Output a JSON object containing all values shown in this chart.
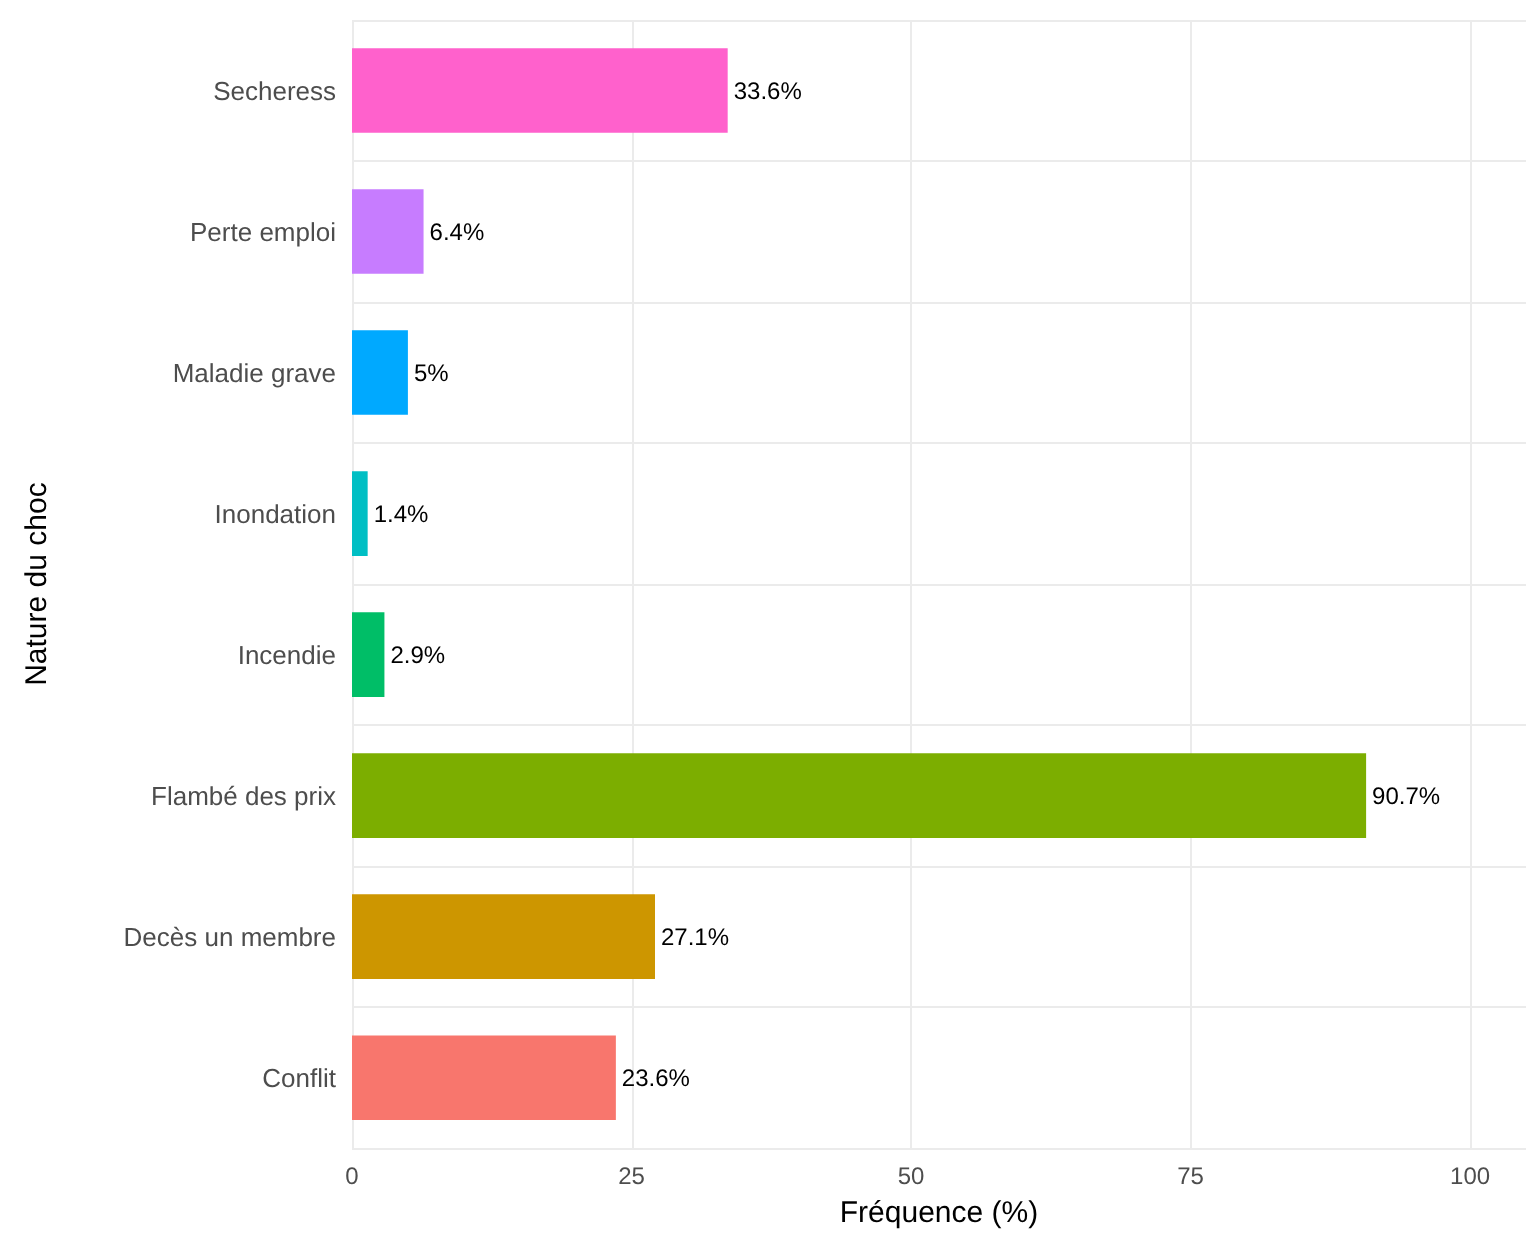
{
  "chart_data": {
    "type": "bar",
    "orientation": "horizontal",
    "xlabel": "Fréquence (%)",
    "ylabel": "Nature du choc",
    "categories": [
      "Secheress",
      "Perte emploi",
      "Maladie grave",
      "Inondation",
      "Incendie",
      "Flambé des prix",
      "Decès un membre",
      "Conflit"
    ],
    "values": [
      33.6,
      6.4,
      5,
      1.4,
      2.9,
      90.7,
      27.1,
      23.6
    ],
    "colors": [
      "#ff61cc",
      "#c77cff",
      "#00a9ff",
      "#00bfc4",
      "#00be67",
      "#7cae00",
      "#cd9600",
      "#f8766d"
    ],
    "value_labels": [
      "33.6%",
      "6.4%",
      "5%",
      "1.4%",
      "2.9%",
      "90.7%",
      "27.1%",
      "23.6%"
    ],
    "xlim": [
      0,
      105
    ],
    "xticks": [
      0,
      25,
      50,
      75,
      100
    ],
    "grid": true
  }
}
